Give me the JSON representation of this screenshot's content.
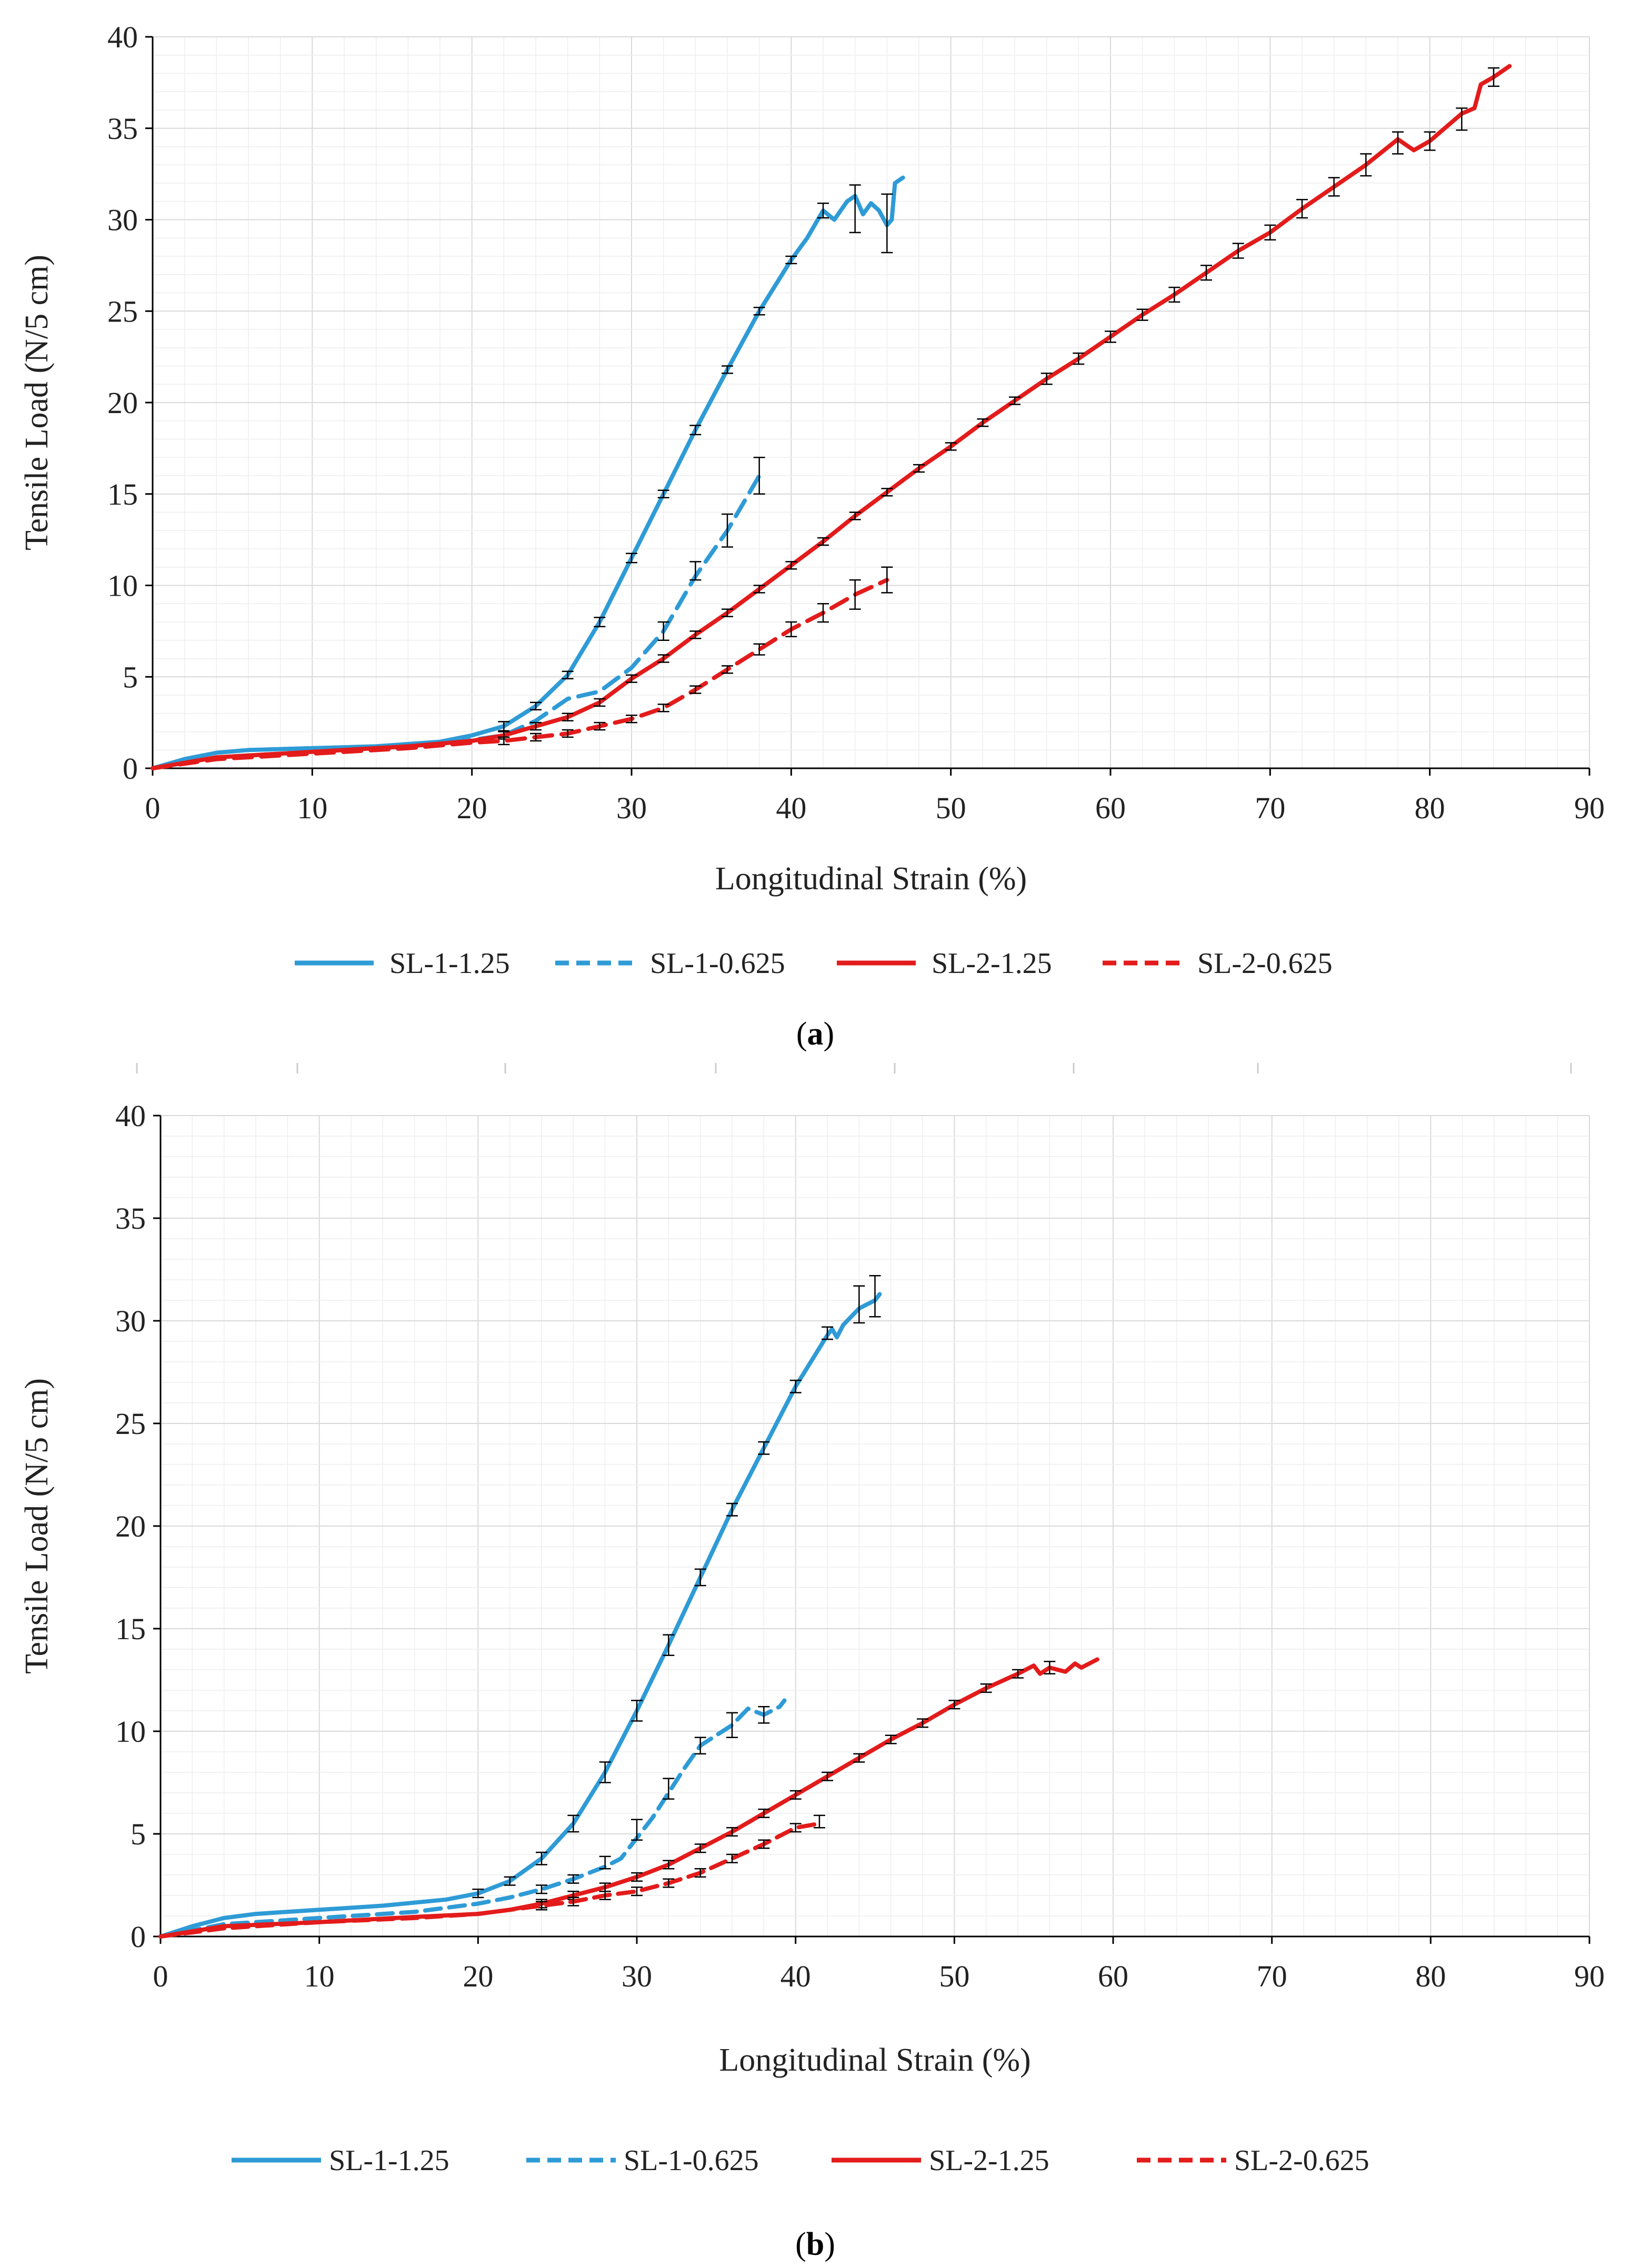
{
  "chart_data": [
    {
      "type": "line",
      "panel": "a",
      "caption": {
        "open": "(",
        "letter": "a",
        "close": ")"
      },
      "xlabel": "Longitudinal Strain (%)",
      "ylabel": "Tensile Load (N/5 cm)",
      "xlim": [
        0,
        90
      ],
      "ylim": [
        0,
        40
      ],
      "xticks": [
        "0",
        "10",
        "20",
        "30",
        "40",
        "50",
        "60",
        "70",
        "80",
        "90"
      ],
      "yticks": [
        "0",
        "5",
        "10",
        "15",
        "20",
        "25",
        "30",
        "35",
        "40"
      ],
      "legend_position": "bottom",
      "series": [
        {
          "name": "SL-1-1.25",
          "color": "#2e9bd6",
          "dash": "solid",
          "x": [
            0,
            2,
            4,
            6,
            10,
            14,
            18,
            20,
            22,
            24,
            26,
            28,
            30,
            32,
            34,
            36,
            38,
            40,
            41,
            42,
            42.7,
            43.5,
            44,
            44.5,
            45,
            45.5,
            46,
            46.3,
            46.5,
            47
          ],
          "y": [
            0,
            0.5,
            0.85,
            1,
            1.1,
            1.2,
            1.45,
            1.8,
            2.3,
            3.4,
            5.1,
            8,
            11.5,
            15,
            18.5,
            21.8,
            25,
            27.8,
            29,
            30.5,
            30,
            31,
            31.3,
            30.3,
            30.9,
            30.5,
            29.7,
            30,
            32,
            32.3
          ],
          "err": [
            [
              22,
              2.3,
              0.25
            ],
            [
              24,
              3.4,
              0.2
            ],
            [
              26,
              5.1,
              0.2
            ],
            [
              28,
              8,
              0.25
            ],
            [
              30,
              11.5,
              0.25
            ],
            [
              32,
              15,
              0.2
            ],
            [
              34,
              18.5,
              0.25
            ],
            [
              36,
              21.8,
              0.2
            ],
            [
              38,
              25,
              0.2
            ],
            [
              40,
              27.8,
              0.2
            ],
            [
              42,
              30.5,
              0.4
            ],
            [
              44,
              30.6,
              1.3
            ],
            [
              46,
              29.8,
              1.6
            ]
          ]
        },
        {
          "name": "SL-1-0.625",
          "color": "#2e9bd6",
          "dash": "dashed",
          "x": [
            0,
            4,
            10,
            18,
            22,
            24,
            26,
            28,
            30,
            32,
            34,
            36,
            38
          ],
          "y": [
            0,
            0.6,
            0.9,
            1.3,
            1.8,
            2.6,
            3.8,
            4.2,
            5.5,
            7.5,
            10.5,
            13,
            16
          ],
          "err": [
            [
              32,
              7.5,
              0.5
            ],
            [
              34,
              10.8,
              0.5
            ],
            [
              36,
              13,
              0.9
            ],
            [
              38,
              16,
              1
            ]
          ]
        },
        {
          "name": "SL-2-1.25",
          "color": "#e31b1b",
          "dash": "solid",
          "x": [
            0,
            4,
            10,
            16,
            20,
            22,
            24,
            26,
            28,
            30,
            32,
            34,
            36,
            38,
            40,
            42,
            44,
            46,
            48,
            50,
            52,
            54,
            56,
            58,
            60,
            62,
            64,
            66,
            68,
            70,
            72,
            74,
            76,
            78,
            79,
            80,
            82,
            82.8,
            83.2,
            84,
            85
          ],
          "y": [
            0,
            0.6,
            0.9,
            1.2,
            1.5,
            1.8,
            2.3,
            2.8,
            3.6,
            4.9,
            6,
            7.3,
            8.5,
            9.8,
            11.1,
            12.4,
            13.8,
            15.1,
            16.4,
            17.6,
            18.9,
            20.1,
            21.3,
            22.4,
            23.6,
            24.8,
            25.9,
            27.1,
            28.3,
            29.3,
            30.6,
            31.8,
            33,
            34.4,
            33.8,
            34.3,
            35.8,
            36.1,
            37.4,
            37.8,
            38.4
          ],
          "err": [
            [
              22,
              1.8,
              0.2
            ],
            [
              24,
              2.3,
              0.2
            ],
            [
              26,
              2.8,
              0.2
            ],
            [
              28,
              3.6,
              0.2
            ],
            [
              30,
              4.9,
              0.2
            ],
            [
              32,
              6,
              0.2
            ],
            [
              34,
              7.3,
              0.2
            ],
            [
              36,
              8.5,
              0.2
            ],
            [
              38,
              9.8,
              0.2
            ],
            [
              40,
              11.1,
              0.2
            ],
            [
              42,
              12.4,
              0.2
            ],
            [
              44,
              13.8,
              0.2
            ],
            [
              46,
              15.1,
              0.2
            ],
            [
              48,
              16.4,
              0.2
            ],
            [
              50,
              17.6,
              0.2
            ],
            [
              52,
              18.9,
              0.2
            ],
            [
              54,
              20.1,
              0.2
            ],
            [
              56,
              21.3,
              0.3
            ],
            [
              58,
              22.4,
              0.3
            ],
            [
              60,
              23.6,
              0.3
            ],
            [
              62,
              24.8,
              0.3
            ],
            [
              64,
              25.9,
              0.4
            ],
            [
              66,
              27.1,
              0.4
            ],
            [
              68,
              28.3,
              0.4
            ],
            [
              70,
              29.3,
              0.4
            ],
            [
              72,
              30.6,
              0.5
            ],
            [
              74,
              31.8,
              0.5
            ],
            [
              76,
              33,
              0.6
            ],
            [
              78,
              34.2,
              0.6
            ],
            [
              80,
              34.3,
              0.5
            ],
            [
              82,
              35.5,
              0.6
            ],
            [
              84,
              37.8,
              0.5
            ]
          ]
        },
        {
          "name": "SL-2-0.625",
          "color": "#e31b1b",
          "dash": "dashed",
          "x": [
            0,
            4,
            10,
            16,
            20,
            22,
            24,
            26,
            28,
            30,
            32,
            34,
            36,
            38,
            40,
            42,
            44,
            46
          ],
          "y": [
            0,
            0.5,
            0.8,
            1.1,
            1.4,
            1.5,
            1.7,
            1.9,
            2.3,
            2.7,
            3.3,
            4.3,
            5.4,
            6.5,
            7.6,
            8.5,
            9.5,
            10.3
          ],
          "err": [
            [
              22,
              1.5,
              0.2
            ],
            [
              24,
              1.7,
              0.2
            ],
            [
              26,
              1.9,
              0.2
            ],
            [
              28,
              2.3,
              0.2
            ],
            [
              30,
              2.7,
              0.2
            ],
            [
              32,
              3.3,
              0.2
            ],
            [
              34,
              4.3,
              0.2
            ],
            [
              36,
              5.4,
              0.2
            ],
            [
              38,
              6.5,
              0.3
            ],
            [
              40,
              7.6,
              0.4
            ],
            [
              42,
              8.5,
              0.5
            ],
            [
              44,
              9.5,
              0.8
            ],
            [
              46,
              10.3,
              0.7
            ]
          ]
        }
      ]
    },
    {
      "type": "line",
      "panel": "b",
      "caption": {
        "open": "(",
        "letter": "b",
        "close": ")"
      },
      "xlabel": "Longitudinal Strain (%)",
      "ylabel": "Tensile Load (N/5 cm)",
      "xlim": [
        0,
        90
      ],
      "ylim": [
        0,
        40
      ],
      "xticks": [
        "0",
        "10",
        "20",
        "30",
        "40",
        "50",
        "60",
        "70",
        "80",
        "90"
      ],
      "yticks": [
        "0",
        "5",
        "10",
        "15",
        "20",
        "25",
        "30",
        "35",
        "40"
      ],
      "legend_position": "bottom",
      "series": [
        {
          "name": "SL-1-1.25",
          "color": "#2e9bd6",
          "dash": "solid",
          "x": [
            0,
            2,
            4,
            6,
            10,
            14,
            18,
            20,
            22,
            24,
            26,
            28,
            30,
            32,
            34,
            36,
            38,
            40,
            42,
            42.3,
            42.6,
            43,
            44,
            45,
            45.3
          ],
          "y": [
            0,
            0.5,
            0.9,
            1.1,
            1.3,
            1.5,
            1.8,
            2.1,
            2.7,
            3.8,
            5.5,
            8,
            11,
            14.2,
            17.5,
            20.8,
            23.8,
            26.8,
            29.3,
            29.6,
            29.2,
            29.8,
            30.6,
            31,
            31.3
          ],
          "err": [
            [
              20,
              2.1,
              0.2
            ],
            [
              22,
              2.7,
              0.2
            ],
            [
              24,
              3.8,
              0.3
            ],
            [
              26,
              5.5,
              0.4
            ],
            [
              28,
              8,
              0.5
            ],
            [
              30,
              11,
              0.5
            ],
            [
              32,
              14.2,
              0.5
            ],
            [
              34,
              17.5,
              0.4
            ],
            [
              36,
              20.8,
              0.3
            ],
            [
              38,
              23.8,
              0.3
            ],
            [
              40,
              26.8,
              0.3
            ],
            [
              42,
              29.4,
              0.3
            ],
            [
              44,
              30.8,
              0.9
            ],
            [
              45,
              31.2,
              1
            ]
          ]
        },
        {
          "name": "SL-1-0.625",
          "color": "#2e9bd6",
          "dash": "dashed",
          "x": [
            0,
            4,
            10,
            16,
            20,
            22,
            24,
            26,
            28,
            29,
            30,
            31,
            32,
            33,
            34,
            35,
            36,
            37,
            38,
            39,
            39.3
          ],
          "y": [
            0,
            0.6,
            0.9,
            1.2,
            1.6,
            1.9,
            2.3,
            2.8,
            3.4,
            3.8,
            4.8,
            5.8,
            7,
            8.2,
            9.3,
            9.8,
            10.3,
            11.1,
            10.8,
            11.2,
            11.5
          ],
          "err": [
            [
              24,
              2.3,
              0.2
            ],
            [
              26,
              2.8,
              0.2
            ],
            [
              28,
              3.6,
              0.3
            ],
            [
              30,
              5.2,
              0.5
            ],
            [
              32,
              7.2,
              0.5
            ],
            [
              34,
              9.3,
              0.4
            ],
            [
              36,
              10.3,
              0.6
            ],
            [
              38,
              10.8,
              0.4
            ]
          ]
        },
        {
          "name": "SL-2-1.25",
          "color": "#e31b1b",
          "dash": "solid",
          "x": [
            0,
            4,
            10,
            16,
            20,
            22,
            24,
            26,
            28,
            30,
            32,
            34,
            36,
            38,
            40,
            42,
            44,
            46,
            48,
            50,
            52,
            54,
            55,
            55.4,
            56,
            57,
            57.6,
            58,
            59
          ],
          "y": [
            0,
            0.5,
            0.7,
            0.95,
            1.1,
            1.3,
            1.6,
            2,
            2.4,
            2.9,
            3.5,
            4.3,
            5.1,
            6,
            6.9,
            7.8,
            8.7,
            9.6,
            10.4,
            11.3,
            12.1,
            12.8,
            13.2,
            12.8,
            13.1,
            12.9,
            13.3,
            13.1,
            13.5
          ],
          "err": [
            [
              24,
              1.6,
              0.2
            ],
            [
              26,
              2,
              0.2
            ],
            [
              28,
              2.4,
              0.2
            ],
            [
              30,
              2.9,
              0.2
            ],
            [
              32,
              3.5,
              0.2
            ],
            [
              34,
              4.3,
              0.2
            ],
            [
              36,
              5.1,
              0.2
            ],
            [
              38,
              6,
              0.2
            ],
            [
              40,
              6.9,
              0.2
            ],
            [
              42,
              7.8,
              0.2
            ],
            [
              44,
              8.7,
              0.2
            ],
            [
              46,
              9.6,
              0.2
            ],
            [
              48,
              10.4,
              0.2
            ],
            [
              50,
              11.3,
              0.2
            ],
            [
              52,
              12.1,
              0.2
            ],
            [
              54,
              12.8,
              0.2
            ],
            [
              56,
              13.1,
              0.3
            ]
          ]
        },
        {
          "name": "SL-2-0.625",
          "color": "#e31b1b",
          "dash": "dashed",
          "x": [
            0,
            4,
            10,
            16,
            20,
            22,
            24,
            26,
            28,
            30,
            32,
            34,
            36,
            38,
            40,
            41.5
          ],
          "y": [
            0,
            0.4,
            0.7,
            0.9,
            1.1,
            1.3,
            1.5,
            1.7,
            2,
            2.2,
            2.6,
            3.1,
            3.8,
            4.5,
            5.3,
            5.5
          ],
          "err": [
            [
              24,
              1.5,
              0.2
            ],
            [
              26,
              1.7,
              0.2
            ],
            [
              28,
              2,
              0.2
            ],
            [
              30,
              2.2,
              0.2
            ],
            [
              32,
              2.6,
              0.2
            ],
            [
              34,
              3.1,
              0.2
            ],
            [
              36,
              3.8,
              0.2
            ],
            [
              38,
              4.5,
              0.2
            ],
            [
              40,
              5.3,
              0.2
            ],
            [
              41.5,
              5.6,
              0.3
            ]
          ]
        }
      ]
    }
  ]
}
